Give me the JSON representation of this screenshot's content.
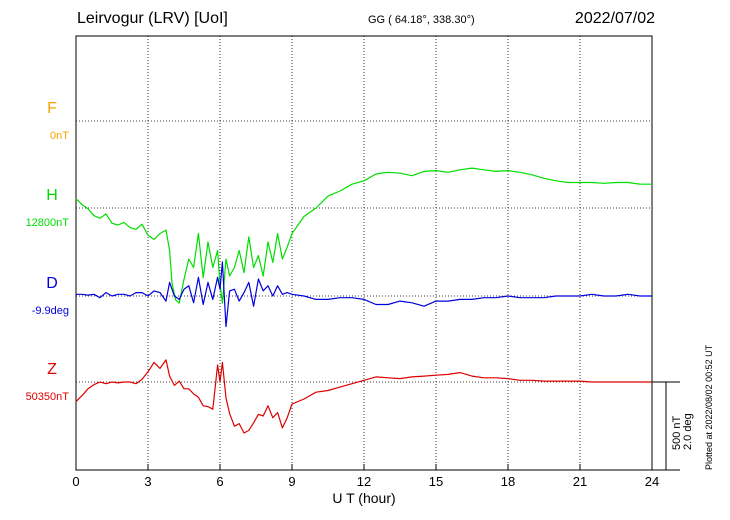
{
  "header": {
    "station": "Leirvogur (LRV)  [UoI]",
    "coords": "GG ( 64.18°, 338.30°)",
    "date": "2022/07/02"
  },
  "footer": {
    "plotted": "Plotted at 2022/08/02 00:52 UT",
    "scale_nT": "500 nT",
    "scale_deg": "2.0 deg"
  },
  "colors": {
    "F": "#f5a300",
    "H": "#00dd00",
    "D": "#0000dd",
    "Z": "#dd0000"
  },
  "chart_data": {
    "type": "line",
    "xlabel": "U T (hour)",
    "xlim": [
      0,
      24
    ],
    "xticks": [
      0,
      3,
      6,
      9,
      12,
      15,
      18,
      21,
      24
    ],
    "scale_note": "500 nT / 2.0 deg per vertical bar",
    "series": [
      {
        "name": "F",
        "baseline_label": "0nT",
        "color": "#f5a300",
        "units": "nT",
        "x": [],
        "y": []
      },
      {
        "name": "H",
        "baseline_label": "12800nT",
        "color": "#00dd00",
        "units": "nT",
        "x": [
          0,
          0.25,
          0.5,
          0.75,
          1,
          1.25,
          1.5,
          1.75,
          2,
          2.25,
          2.5,
          2.75,
          3,
          3.25,
          3.5,
          3.75,
          3.9,
          4.0,
          4.15,
          4.3,
          4.5,
          4.7,
          4.9,
          5.1,
          5.3,
          5.5,
          5.7,
          5.9,
          6.0,
          6.1,
          6.25,
          6.4,
          6.6,
          6.8,
          7.0,
          7.2,
          7.4,
          7.6,
          7.8,
          8.0,
          8.2,
          8.4,
          8.6,
          8.8,
          9.0,
          9.5,
          10,
          10.5,
          11,
          11.5,
          12,
          12.5,
          13,
          13.5,
          14,
          14.5,
          15,
          15.5,
          16,
          16.5,
          17,
          17.5,
          18,
          18.5,
          19,
          19.5,
          20,
          20.5,
          21,
          21.5,
          22,
          22.5,
          23,
          23.5,
          24
        ],
        "y": [
          55,
          20,
          -5,
          -45,
          -60,
          -35,
          -90,
          -100,
          -85,
          -115,
          -125,
          -95,
          -160,
          -185,
          -150,
          -130,
          -250,
          -440,
          -540,
          -560,
          -420,
          -300,
          -350,
          -150,
          -410,
          -200,
          -350,
          -250,
          -450,
          -560,
          -300,
          -400,
          -350,
          -250,
          -380,
          -170,
          -350,
          -280,
          -400,
          -200,
          -320,
          -150,
          -300,
          -230,
          -150,
          -50,
          0,
          70,
          100,
          140,
          160,
          200,
          210,
          205,
          190,
          215,
          220,
          210,
          225,
          235,
          225,
          215,
          220,
          210,
          195,
          175,
          160,
          150,
          150,
          150,
          145,
          150,
          150,
          140,
          140
        ]
      },
      {
        "name": "D",
        "baseline_label": "-9.9deg",
        "color": "#0000dd",
        "units": "deg",
        "x": [
          0,
          0.25,
          0.5,
          0.75,
          1,
          1.25,
          1.5,
          1.75,
          2,
          2.25,
          2.5,
          2.75,
          3,
          3.25,
          3.5,
          3.75,
          3.9,
          4.1,
          4.3,
          4.5,
          4.7,
          4.9,
          5.1,
          5.3,
          5.5,
          5.7,
          5.9,
          6.0,
          6.1,
          6.25,
          6.4,
          6.6,
          6.8,
          7.0,
          7.2,
          7.4,
          7.6,
          7.8,
          8.0,
          8.2,
          8.4,
          8.6,
          8.8,
          9.0,
          9.5,
          10,
          10.5,
          11,
          11.5,
          12,
          12.5,
          13,
          13.5,
          14,
          14.5,
          15,
          15.5,
          16,
          16.5,
          17,
          17.5,
          18,
          18.5,
          19,
          19.5,
          20,
          20.5,
          21,
          21.5,
          22,
          22.5,
          23,
          23.5,
          24
        ],
        "y": [
          0.04,
          0.04,
          0.02,
          0.04,
          -0.04,
          0.08,
          0.0,
          0.04,
          0.04,
          0.0,
          0.08,
          0.08,
          0.0,
          0.12,
          0.08,
          -0.12,
          0.32,
          0.0,
          -0.08,
          0.16,
          0.24,
          -0.16,
          0.44,
          -0.2,
          0.32,
          -0.08,
          0.44,
          0.16,
          0.8,
          -0.72,
          0.12,
          0.16,
          -0.12,
          0.08,
          0.32,
          -0.24,
          0.4,
          0.12,
          0.24,
          0.0,
          0.24,
          0.04,
          0.08,
          0.04,
          0.0,
          -0.08,
          -0.08,
          -0.04,
          -0.04,
          -0.08,
          -0.2,
          -0.2,
          -0.12,
          -0.16,
          -0.24,
          -0.12,
          -0.12,
          -0.08,
          -0.08,
          -0.04,
          -0.04,
          0.0,
          -0.04,
          -0.04,
          -0.04,
          0.0,
          0.0,
          0.0,
          0.04,
          0.0,
          0.0,
          0.04,
          0.0,
          0.0
        ]
      },
      {
        "name": "Z",
        "baseline_label": "50350nT",
        "color": "#dd0000",
        "units": "nT",
        "x": [
          0,
          0.25,
          0.5,
          0.75,
          1,
          1.25,
          1.5,
          1.75,
          2,
          2.25,
          2.5,
          2.75,
          3,
          3.25,
          3.5,
          3.75,
          3.9,
          4.1,
          4.3,
          4.5,
          4.7,
          4.9,
          5.1,
          5.3,
          5.5,
          5.7,
          5.9,
          6.0,
          6.1,
          6.25,
          6.4,
          6.6,
          6.8,
          7.0,
          7.2,
          7.4,
          7.6,
          7.8,
          8.0,
          8.2,
          8.4,
          8.6,
          8.8,
          9.0,
          9.5,
          10,
          10.5,
          11,
          11.5,
          12,
          12.5,
          13,
          13.5,
          14,
          14.5,
          15,
          15.5,
          16,
          16.5,
          17,
          17.5,
          18,
          18.5,
          19,
          19.5,
          20,
          20.5,
          21,
          21.5,
          22,
          22.5,
          23,
          23.5,
          24
        ],
        "y": [
          -115,
          -80,
          -40,
          -15,
          0,
          -10,
          0,
          -5,
          0,
          0,
          -10,
          15,
          60,
          115,
          80,
          130,
          35,
          -20,
          5,
          -40,
          -40,
          -70,
          -90,
          -140,
          -145,
          -160,
          100,
          0,
          115,
          -95,
          -185,
          -260,
          -245,
          -300,
          -285,
          -240,
          -190,
          -200,
          -140,
          -210,
          -180,
          -270,
          -210,
          -130,
          -100,
          -60,
          -50,
          -30,
          -10,
          10,
          30,
          25,
          20,
          30,
          35,
          40,
          45,
          55,
          35,
          25,
          25,
          20,
          10,
          10,
          5,
          5,
          5,
          5,
          0,
          0,
          0,
          0,
          0,
          0
        ]
      }
    ]
  }
}
